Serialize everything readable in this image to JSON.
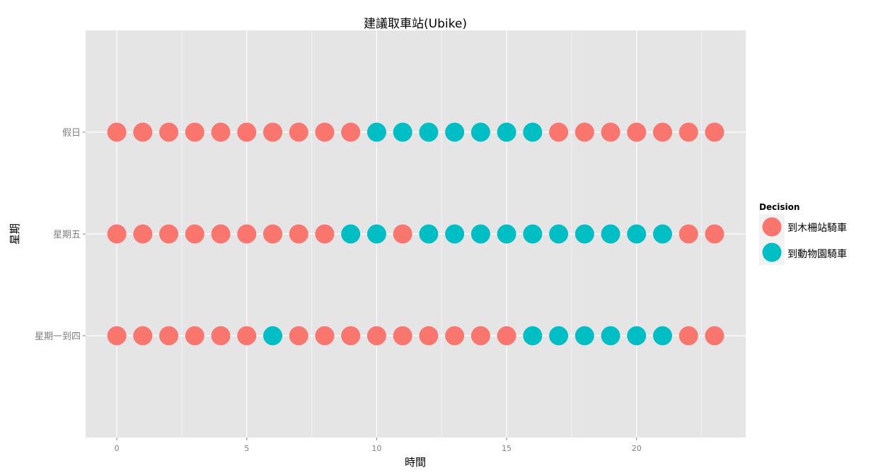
{
  "chart_data": {
    "type": "scatter",
    "title": "建議取車站(Ubike)",
    "xlabel": "時間",
    "ylabel": "星期",
    "xlim": [
      -1.2,
      24.2
    ],
    "xticks": [
      0,
      5,
      10,
      15,
      20
    ],
    "categories": [
      "星期一到四",
      "星期五",
      "假日"
    ],
    "grid": true,
    "legend": {
      "title": "Decision",
      "placement": "right",
      "entries": [
        {
          "label": "到木柵站騎車",
          "color": "#F8766D"
        },
        {
          "label": "到動物園騎車",
          "color": "#00BFC4"
        }
      ]
    },
    "series": [
      {
        "category": "假日",
        "x": [
          0,
          1,
          2,
          3,
          4,
          5,
          6,
          7,
          8,
          9,
          10,
          11,
          12,
          13,
          14,
          15,
          16,
          17,
          18,
          19,
          20,
          21,
          22,
          23
        ],
        "decision": [
          0,
          0,
          0,
          0,
          0,
          0,
          0,
          0,
          0,
          0,
          1,
          1,
          1,
          1,
          1,
          1,
          1,
          0,
          0,
          0,
          0,
          0,
          0,
          0
        ]
      },
      {
        "category": "星期五",
        "x": [
          0,
          1,
          2,
          3,
          4,
          5,
          6,
          7,
          8,
          9,
          10,
          11,
          12,
          13,
          14,
          15,
          16,
          17,
          18,
          19,
          20,
          21,
          22,
          23
        ],
        "decision": [
          0,
          0,
          0,
          0,
          0,
          0,
          0,
          0,
          0,
          1,
          1,
          0,
          1,
          1,
          1,
          1,
          1,
          1,
          1,
          1,
          1,
          1,
          0,
          0
        ]
      },
      {
        "category": "星期一到四",
        "x": [
          0,
          1,
          2,
          3,
          4,
          5,
          6,
          7,
          8,
          9,
          10,
          11,
          12,
          13,
          14,
          15,
          16,
          17,
          18,
          19,
          20,
          21,
          22,
          23
        ],
        "decision": [
          0,
          0,
          0,
          0,
          0,
          0,
          1,
          0,
          0,
          0,
          0,
          0,
          0,
          0,
          0,
          0,
          1,
          1,
          1,
          1,
          1,
          1,
          0,
          0
        ]
      }
    ]
  }
}
